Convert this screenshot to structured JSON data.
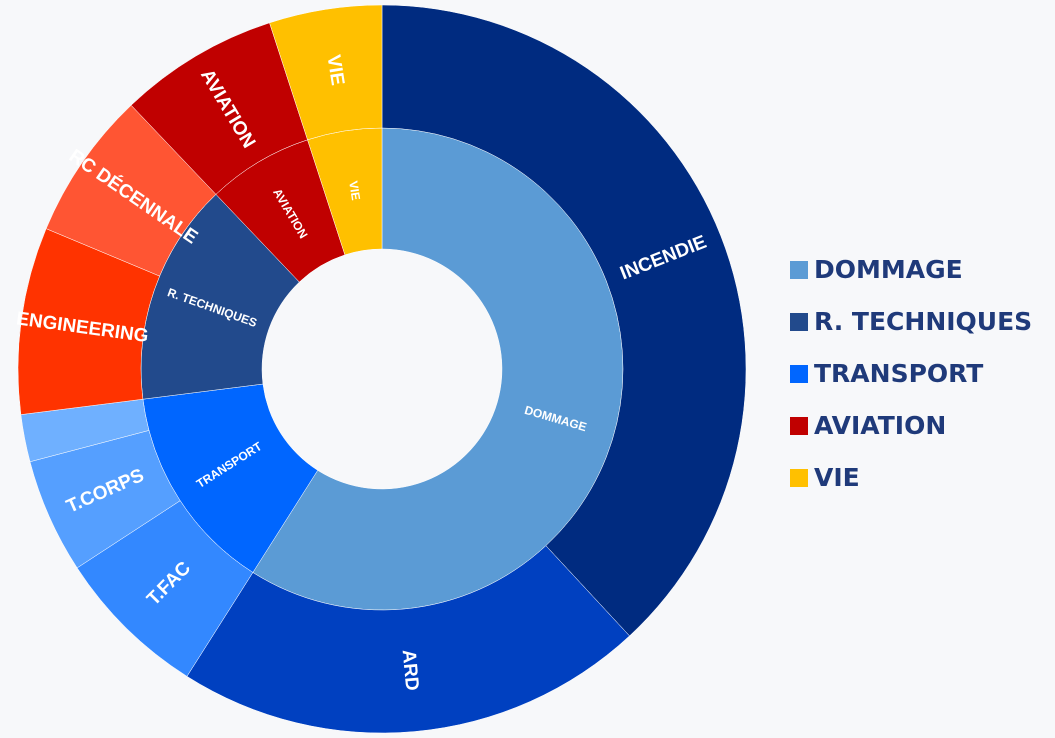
{
  "chart_data": {
    "type": "sunburst",
    "series": [
      {
        "name": "DOMMAGE",
        "color": "#5b9bd5",
        "value": 59,
        "children": [
          {
            "label": "INCENDIE",
            "color": "#002b80",
            "value": 38.1
          },
          {
            "label": "ARD",
            "color": "#0040c0",
            "value": 20.9
          }
        ]
      },
      {
        "name": "TRANSPORT",
        "color": "#0066ff",
        "value": 14,
        "children": [
          {
            "label": "T.FAC",
            "color": "#3388ff",
            "value": 6.8
          },
          {
            "label": "T.CORPS",
            "color": "#559fff",
            "value": 5.1
          },
          {
            "label": null,
            "color": "#6fb0ff",
            "value": 2.1
          }
        ]
      },
      {
        "name": "R. TECHNIQUES",
        "color": "#224a8c",
        "value": 14.9,
        "children": [
          {
            "label": "ENGINEERING",
            "color": "#ff3300",
            "value": 8.3
          },
          {
            "label": "RC DÉCENNALE",
            "color": "#ff5533",
            "value": 6.6
          }
        ]
      },
      {
        "name": "AVIATION",
        "color": "#c00000",
        "value": 7.1,
        "children": [
          {
            "label": "AVIATION",
            "color": "#c00000",
            "value": 7.1
          }
        ]
      },
      {
        "name": "VIE",
        "color": "#ffc000",
        "value": 5,
        "children": [
          {
            "label": "VIE",
            "color": "#ffc000",
            "value": 5
          }
        ]
      }
    ],
    "legend_order": [
      0,
      2,
      1,
      3,
      4
    ],
    "legend": "right"
  }
}
